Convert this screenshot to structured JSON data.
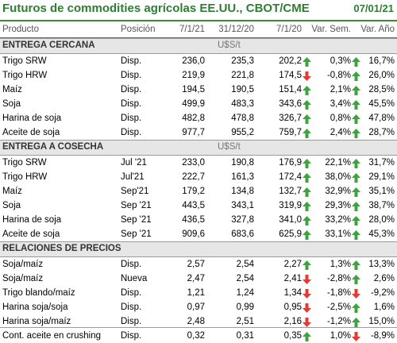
{
  "title": "Futuros de commodities agrícolas EE.UU., CBOT/CME",
  "date": "07/01/21",
  "columns": {
    "producto": "Producto",
    "posicion": "Posición",
    "d1": "7/1/21",
    "d2": "31/12/20",
    "d3": "7/1/20",
    "sem": "Var. Sem.",
    "ano": "Var. Año"
  },
  "colors": {
    "accent": "#2e7d32",
    "up": "#3aa53a",
    "down": "#e53935",
    "section_bg": "#e6e6e6"
  },
  "sections": [
    {
      "name": "ENTREGA CERCANA",
      "unit": "U$S/t",
      "rows": [
        {
          "product": "Trigo SRW",
          "position": "Disp.",
          "v1": "236,0",
          "v2": "235,3",
          "v3": "202,2",
          "a1": "up",
          "sem": "0,3%",
          "a2": "up",
          "year": "16,7%"
        },
        {
          "product": "Trigo HRW",
          "position": "Disp.",
          "v1": "219,9",
          "v2": "221,8",
          "v3": "174,5",
          "a1": "down",
          "sem": "-0,8%",
          "a2": "up",
          "year": "26,0%"
        },
        {
          "product": "Maíz",
          "position": "Disp.",
          "v1": "194,5",
          "v2": "190,5",
          "v3": "151,4",
          "a1": "up",
          "sem": "2,1%",
          "a2": "up",
          "year": "28,5%"
        },
        {
          "product": "Soja",
          "position": "Disp.",
          "v1": "499,9",
          "v2": "483,3",
          "v3": "343,6",
          "a1": "up",
          "sem": "3,4%",
          "a2": "up",
          "year": "45,5%"
        },
        {
          "product": "Harina de soja",
          "position": "Disp.",
          "v1": "482,8",
          "v2": "478,8",
          "v3": "326,7",
          "a1": "up",
          "sem": "0,8%",
          "a2": "up",
          "year": "47,8%"
        },
        {
          "product": "Aceite de soja",
          "position": "Disp.",
          "v1": "977,7",
          "v2": "955,2",
          "v3": "759,7",
          "a1": "up",
          "sem": "2,4%",
          "a2": "up",
          "year": "28,7%"
        }
      ]
    },
    {
      "name": "ENTREGA A COSECHA",
      "unit": "U$S/t",
      "rows": [
        {
          "product": "Trigo SRW",
          "position": "Jul '21",
          "v1": "233,0",
          "v2": "190,8",
          "v3": "176,9",
          "a1": "up",
          "sem": "22,1%",
          "a2": "up",
          "year": "31,7%"
        },
        {
          "product": "Trigo HRW",
          "position": "Jul'21",
          "v1": "222,7",
          "v2": "161,3",
          "v3": "172,4",
          "a1": "up",
          "sem": "38,0%",
          "a2": "up",
          "year": "29,1%"
        },
        {
          "product": "Maíz",
          "position": "Sep'21",
          "v1": "179,2",
          "v2": "134,8",
          "v3": "132,7",
          "a1": "up",
          "sem": "32,9%",
          "a2": "up",
          "year": "35,1%"
        },
        {
          "product": "Soja",
          "position": "Sep '21",
          "v1": "443,5",
          "v2": "343,1",
          "v3": "319,9",
          "a1": "up",
          "sem": "29,3%",
          "a2": "up",
          "year": "38,7%"
        },
        {
          "product": "Harina de soja",
          "position": "Sep '21",
          "v1": "436,5",
          "v2": "327,8",
          "v3": "341,0",
          "a1": "up",
          "sem": "33,2%",
          "a2": "up",
          "year": "28,0%"
        },
        {
          "product": "Aceite de soja",
          "position": "Sep '21",
          "v1": "909,6",
          "v2": "683,6",
          "v3": "625,9",
          "a1": "up",
          "sem": "33,1%",
          "a2": "up",
          "year": "45,3%"
        }
      ]
    },
    {
      "name": "RELACIONES DE PRECIOS",
      "unit": "",
      "rows": [
        {
          "product": "Soja/maíz",
          "position": "Disp.",
          "v1": "2,57",
          "v2": "2,54",
          "v3": "2,27",
          "a1": "up",
          "sem": "1,3%",
          "a2": "up",
          "year": "13,3%"
        },
        {
          "product": "Soja/maíz",
          "position": "Nueva",
          "v1": "2,47",
          "v2": "2,54",
          "v3": "2,41",
          "a1": "down",
          "sem": "-2,8%",
          "a2": "up",
          "year": "2,6%"
        },
        {
          "product": "Trigo blando/maíz",
          "position": "Disp.",
          "v1": "1,21",
          "v2": "1,24",
          "v3": "1,34",
          "a1": "down",
          "sem": "-1,8%",
          "a2": "down",
          "year": "-9,2%"
        },
        {
          "product": "Harina soja/soja",
          "position": "Disp.",
          "v1": "0,97",
          "v2": "0,99",
          "v3": "0,95",
          "a1": "down",
          "sem": "-2,5%",
          "a2": "up",
          "year": "1,6%"
        },
        {
          "product": "Harina soja/maíz",
          "position": "Disp.",
          "v1": "2,48",
          "v2": "2,51",
          "v3": "2,16",
          "a1": "down",
          "sem": "-1,2%",
          "a2": "up",
          "year": "15,0%"
        },
        {
          "product": "Cont. aceite en crushing",
          "position": "Disp.",
          "v1": "0,32",
          "v2": "0,31",
          "v3": "0,35",
          "a1": "up",
          "sem": "1,0%",
          "a2": "down",
          "year": "-8,9%"
        }
      ]
    }
  ]
}
